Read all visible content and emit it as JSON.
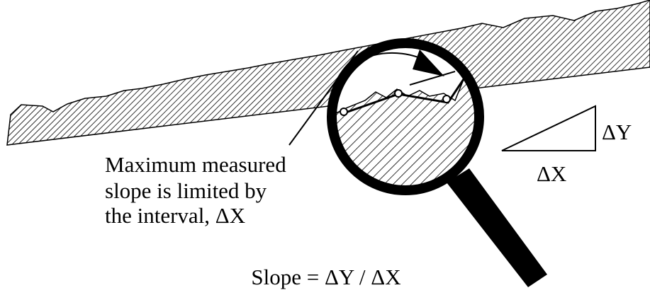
{
  "annotation": {
    "lines": [
      "Maximum measured",
      "slope is limited by",
      "the interval, ΔX"
    ]
  },
  "triangle": {
    "dy_label": "ΔY",
    "dx_label": "ΔX"
  },
  "formula": "Slope = ΔY / ΔX"
}
